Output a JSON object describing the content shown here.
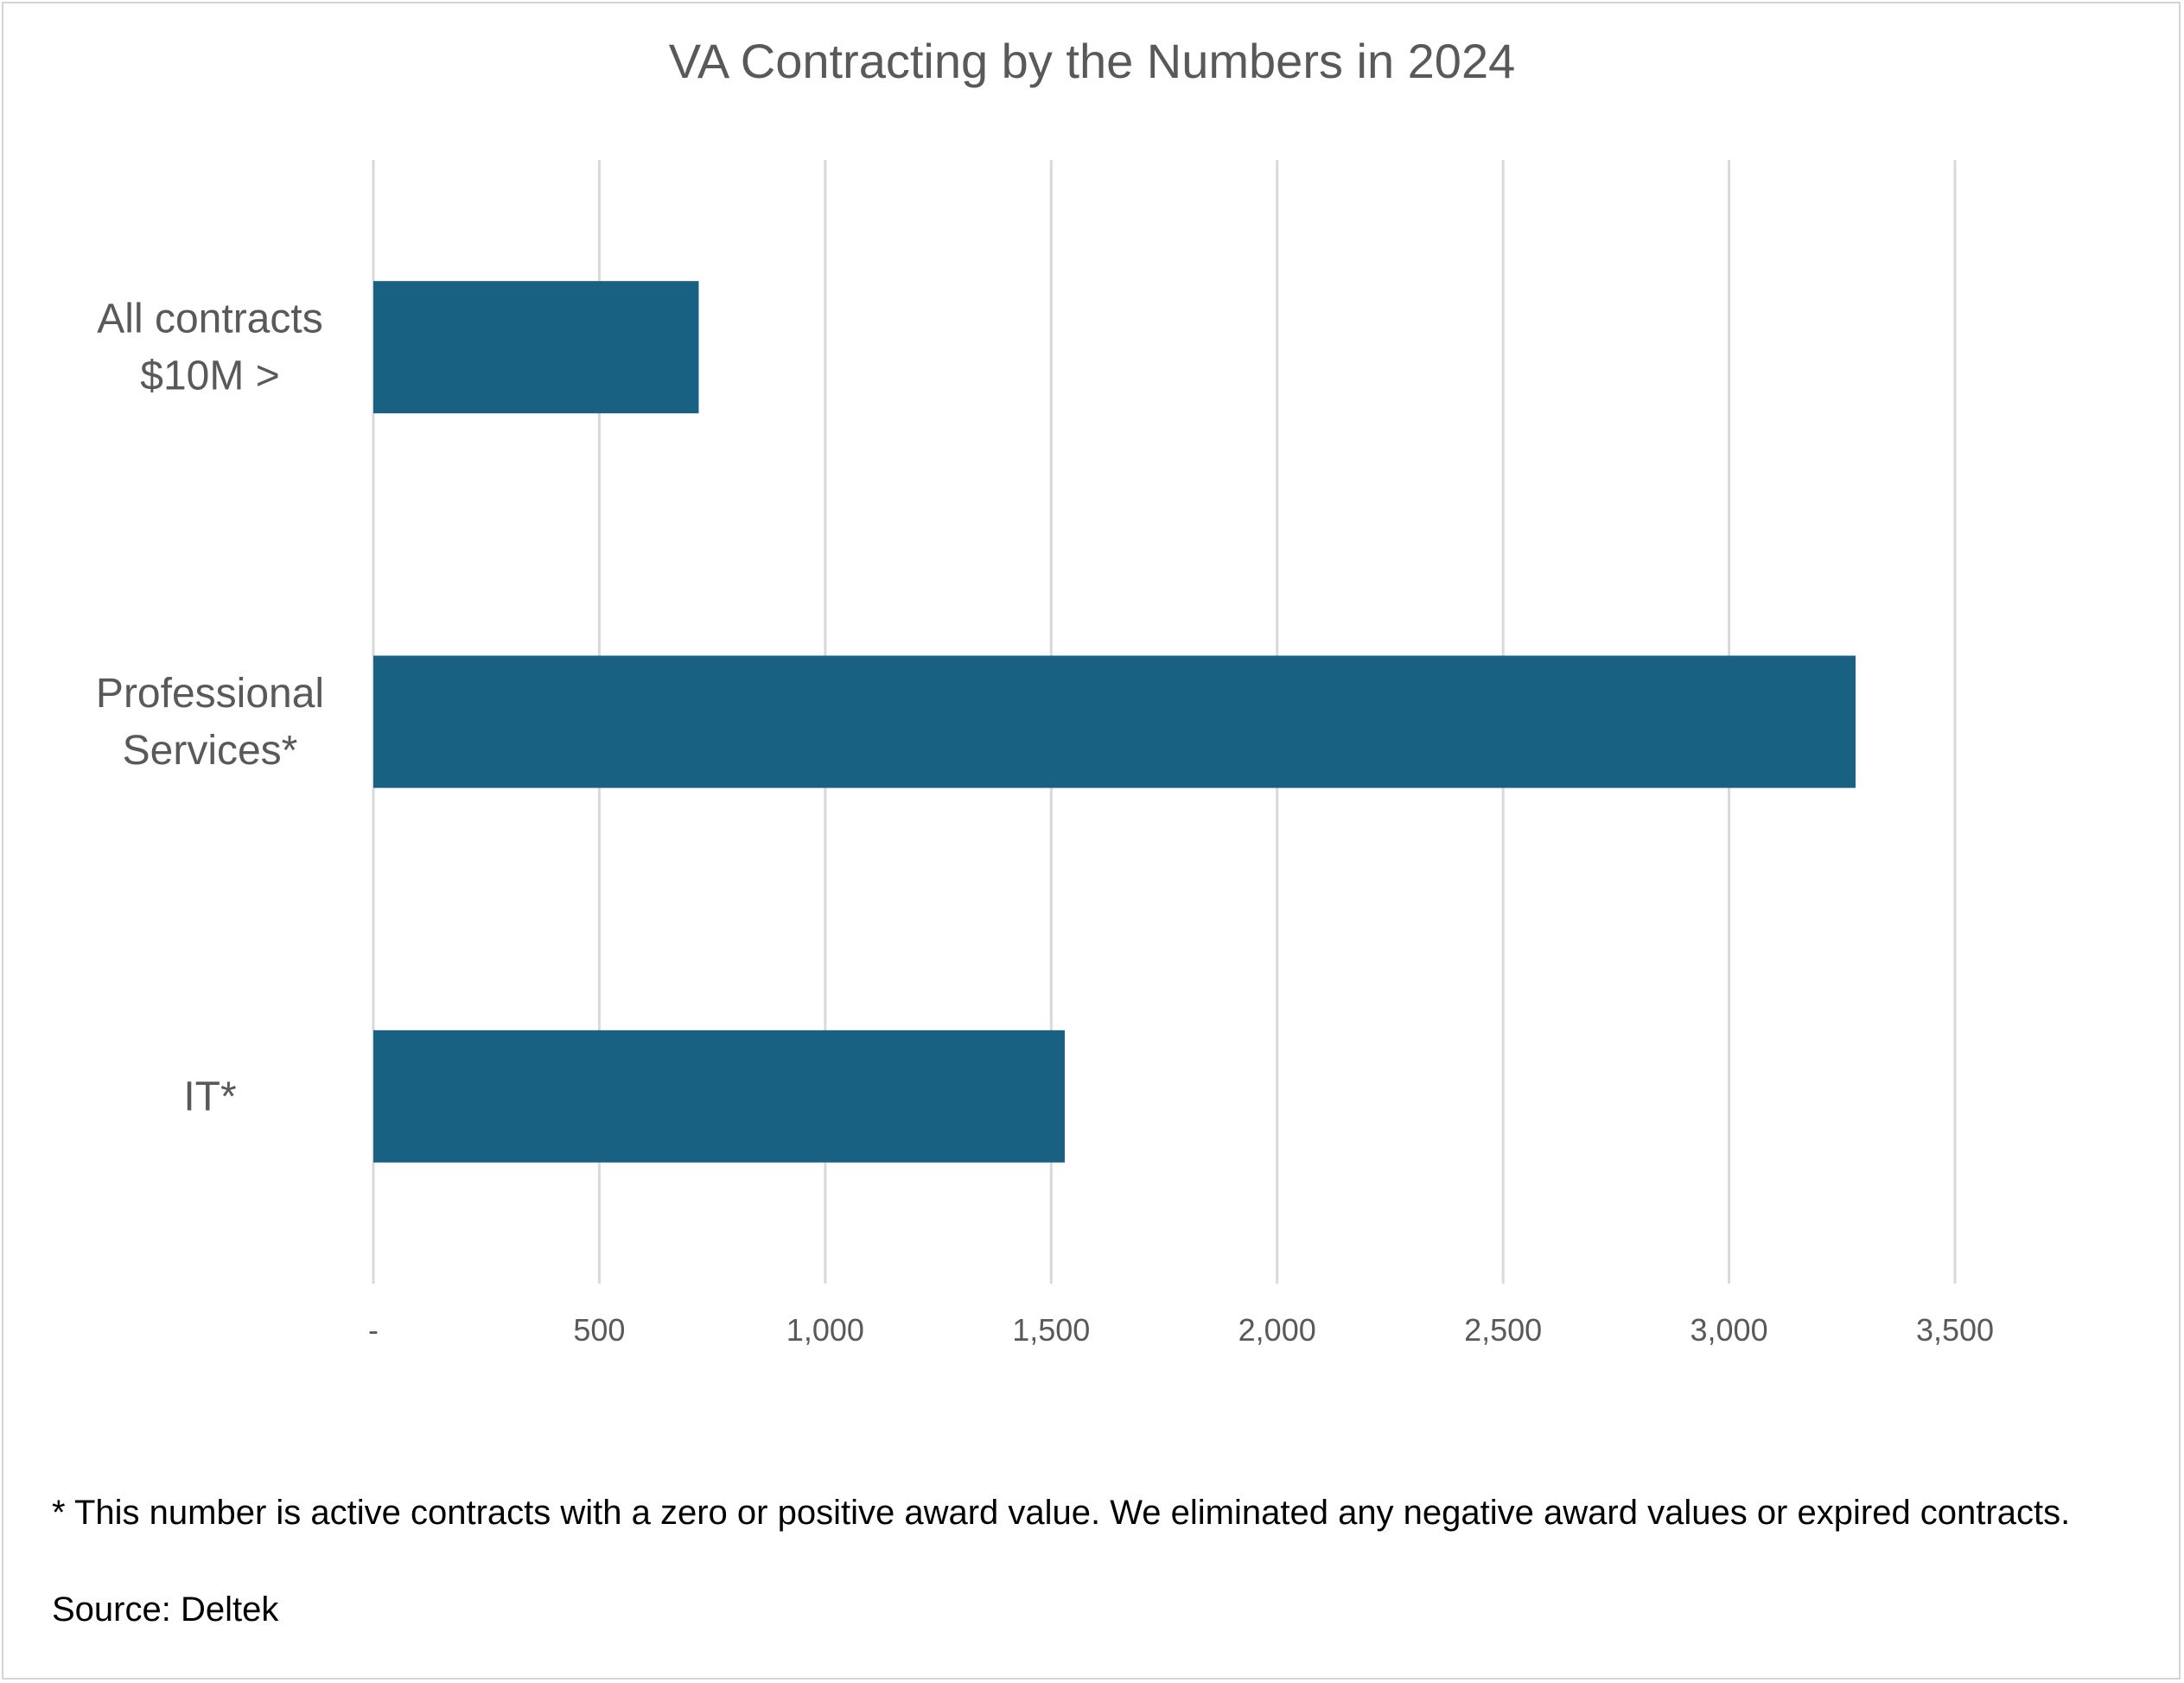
{
  "chart_data": {
    "type": "bar",
    "orientation": "horizontal",
    "title": "VA Contracting by the Numbers in 2024",
    "categories": [
      "All contracts $10M >",
      "Professional Services*",
      "IT*"
    ],
    "category_lines": [
      [
        "All contracts",
        "$10M >"
      ],
      [
        "Professional",
        "Services*"
      ],
      [
        "IT*"
      ]
    ],
    "values": [
      720,
      3280,
      1530
    ],
    "xlim": [
      0,
      3500
    ],
    "ticks": [
      0,
      500,
      1000,
      1500,
      2000,
      2500,
      3000,
      3500
    ],
    "tick_labels": [
      "-",
      "500",
      "1,000",
      "1,500",
      "2,000",
      "2,500",
      "3,000",
      "3,500"
    ],
    "grid": "vertical",
    "bar_color": "#186183",
    "grid_color": "#d9d9d9",
    "legend": "none"
  },
  "notes": {
    "footnote": "* This number is active contracts with a zero or positive award value. We eliminated any negative award values or expired contracts.",
    "source": "Source: Deltek"
  }
}
